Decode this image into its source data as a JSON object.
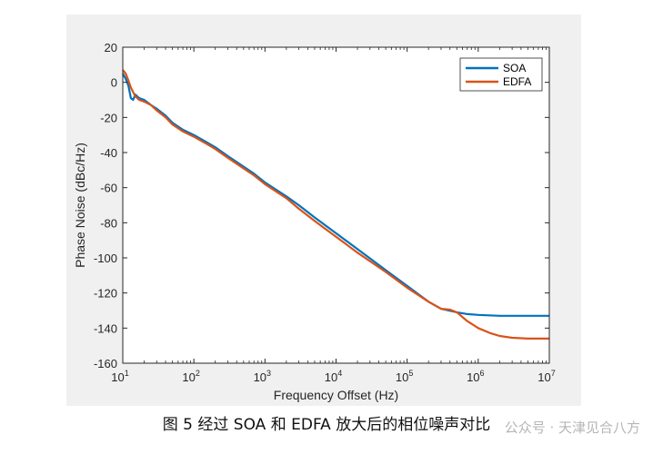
{
  "chart_data": {
    "type": "line",
    "xscale": "log",
    "xlim": [
      10,
      10000000
    ],
    "ylim": [
      -160,
      20
    ],
    "xlabel": "Frequency Offset (Hz)",
    "ylabel": "Phase Noise (dBc/Hz)",
    "x_ticks": [
      10,
      100,
      1000,
      10000,
      100000,
      1000000,
      10000000
    ],
    "x_tick_labels": [
      {
        "base": "10",
        "exp": "1"
      },
      {
        "base": "10",
        "exp": "2"
      },
      {
        "base": "10",
        "exp": "3"
      },
      {
        "base": "10",
        "exp": "4"
      },
      {
        "base": "10",
        "exp": "5"
      },
      {
        "base": "10",
        "exp": "6"
      },
      {
        "base": "10",
        "exp": "7"
      }
    ],
    "y_ticks": [
      20,
      0,
      -20,
      -40,
      -60,
      -80,
      -100,
      -120,
      -140,
      -160
    ],
    "legend_position": "top-right",
    "grid": false,
    "series": [
      {
        "name": "SOA",
        "color": "#0072BD",
        "points": [
          [
            10,
            5
          ],
          [
            11,
            2
          ],
          [
            12,
            -2
          ],
          [
            13,
            -9
          ],
          [
            14,
            -10
          ],
          [
            15,
            -7
          ],
          [
            17,
            -9
          ],
          [
            20,
            -10
          ],
          [
            25,
            -13
          ],
          [
            30,
            -15
          ],
          [
            40,
            -19
          ],
          [
            50,
            -23
          ],
          [
            70,
            -27
          ],
          [
            100,
            -30
          ],
          [
            150,
            -34
          ],
          [
            200,
            -37
          ],
          [
            300,
            -42
          ],
          [
            500,
            -48
          ],
          [
            700,
            -52
          ],
          [
            1000,
            -57
          ],
          [
            2000,
            -65
          ],
          [
            3000,
            -70
          ],
          [
            5000,
            -77
          ],
          [
            10000,
            -86
          ],
          [
            20000,
            -95
          ],
          [
            50000,
            -107
          ],
          [
            100000,
            -116
          ],
          [
            200000,
            -125
          ],
          [
            300000,
            -129
          ],
          [
            500000,
            -131
          ],
          [
            700000,
            -132
          ],
          [
            1000000,
            -132.5
          ],
          [
            2000000,
            -133
          ],
          [
            5000000,
            -133
          ],
          [
            10000000,
            -133
          ]
        ]
      },
      {
        "name": "EDFA",
        "color": "#D95319",
        "points": [
          [
            10,
            7
          ],
          [
            11,
            5
          ],
          [
            12,
            1
          ],
          [
            13,
            -3
          ],
          [
            15,
            -8
          ],
          [
            17,
            -10
          ],
          [
            20,
            -11
          ],
          [
            25,
            -13
          ],
          [
            30,
            -16
          ],
          [
            40,
            -20
          ],
          [
            50,
            -24
          ],
          [
            70,
            -28
          ],
          [
            100,
            -31
          ],
          [
            150,
            -35
          ],
          [
            200,
            -38
          ],
          [
            300,
            -43
          ],
          [
            500,
            -49
          ],
          [
            700,
            -53
          ],
          [
            1000,
            -58
          ],
          [
            2000,
            -66
          ],
          [
            3000,
            -72
          ],
          [
            5000,
            -79
          ],
          [
            10000,
            -88
          ],
          [
            20000,
            -97
          ],
          [
            50000,
            -108
          ],
          [
            100000,
            -117
          ],
          [
            200000,
            -125
          ],
          [
            300000,
            -129
          ],
          [
            400000,
            -129.5
          ],
          [
            500000,
            -131
          ],
          [
            700000,
            -136
          ],
          [
            1000000,
            -140
          ],
          [
            1500000,
            -143
          ],
          [
            2000000,
            -144.5
          ],
          [
            3000000,
            -145.5
          ],
          [
            5000000,
            -146
          ],
          [
            10000000,
            -146
          ]
        ]
      }
    ]
  },
  "caption": "图 5  经过 SOA 和 EDFA 放大后的相位噪声对比",
  "watermark": "公众号 · 天津见合八方"
}
